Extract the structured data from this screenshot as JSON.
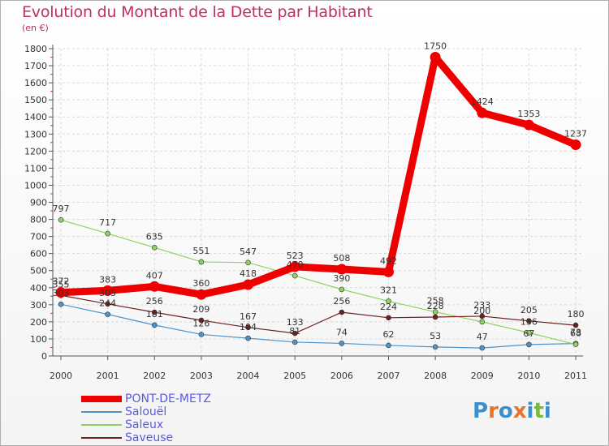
{
  "title": "Evolution du Montant de la Dette par Habitant",
  "subtitle": "(en €)",
  "logo": {
    "text": "Proxiti",
    "letters": [
      "P",
      "r",
      "o",
      "x",
      "i",
      "t",
      "i"
    ],
    "colors": [
      "#3a8fd0",
      "#e8742a",
      "#3a8fd0",
      "#e8742a",
      "#3a8fd0",
      "#7bb83a",
      "#3a8fd0"
    ]
  },
  "chart_data": {
    "type": "line",
    "title": "Evolution du Montant de la Dette par Habitant",
    "subtitle": "(en €)",
    "x": [
      "2000",
      "2001",
      "2002",
      "2003",
      "2004",
      "2005",
      "2006",
      "2007",
      "2008",
      "2009",
      "2010",
      "2011"
    ],
    "ylim": [
      0,
      1800
    ],
    "yticks": [
      "0",
      "100",
      "200",
      "300",
      "400",
      "500",
      "600",
      "700",
      "800",
      "900",
      "1000",
      "1100",
      "1200",
      "1300",
      "1400",
      "1500",
      "1600",
      "1700",
      "1800"
    ],
    "grid": true,
    "legend_position": "bottom-left",
    "series": [
      {
        "name": "PONT-DE-METZ",
        "color": "#ee0000",
        "values": [
          372,
          383,
          407,
          360,
          418,
          523,
          508,
          492,
          1750,
          1424,
          1353,
          1237
        ],
        "labels": [
          "372",
          "383",
          "407",
          "360",
          "418",
          "523",
          "508",
          "492",
          "1750",
          "1424",
          "1353",
          "1237"
        ]
      },
      {
        "name": "Salouël",
        "color": "#4f93c8",
        "values": [
          303,
          244,
          181,
          126,
          104,
          81,
          74,
          62,
          53,
          47,
          67,
          73
        ],
        "labels": [
          "303",
          "244",
          "181",
          "126",
          "104",
          "81",
          "74",
          "62",
          "53",
          "47",
          "67",
          "73"
        ]
      },
      {
        "name": "Saleux",
        "color": "#8fd35e",
        "values": [
          797,
          717,
          635,
          551,
          547,
          470,
          390,
          321,
          258,
          200,
          136,
          68
        ],
        "labels": [
          "797",
          "717",
          "635",
          "551",
          "547",
          "470",
          "390",
          "321",
          "258",
          "200",
          "136",
          "68"
        ]
      },
      {
        "name": "Saveuse",
        "color": "#6e2020",
        "values": [
          355,
          305,
          256,
          209,
          167,
          133,
          256,
          224,
          228,
          233,
          205,
          180
        ],
        "labels": [
          "355",
          "305",
          "256",
          "209",
          "167",
          "133",
          "256",
          "224",
          "228",
          "233",
          "205",
          "180"
        ]
      }
    ]
  }
}
